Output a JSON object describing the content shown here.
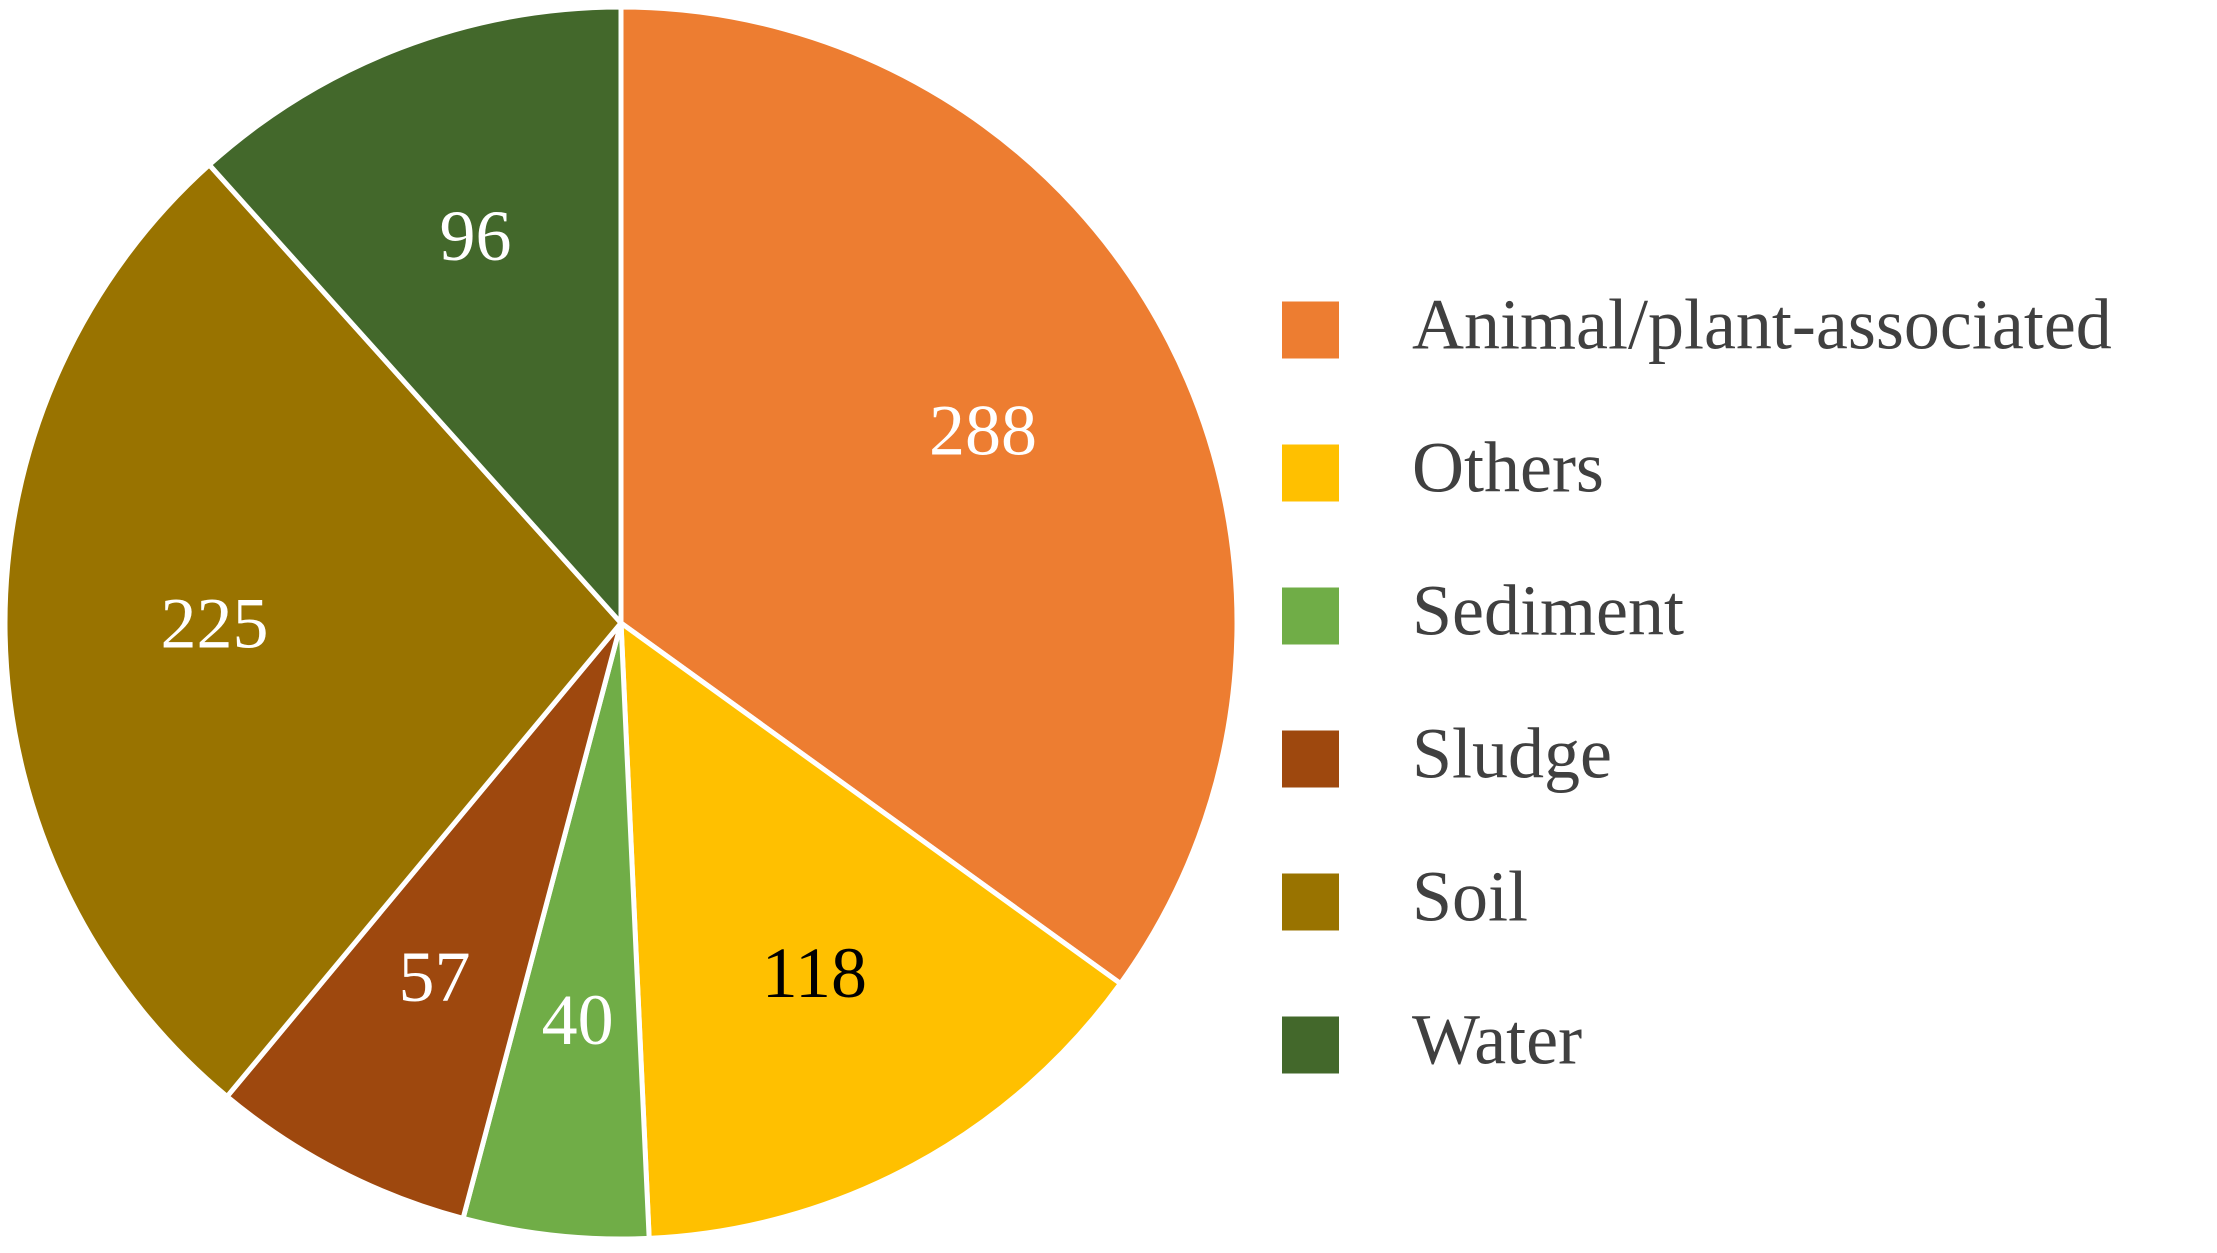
{
  "chart_data": {
    "type": "pie",
    "title": "",
    "categories": [
      "Animal/plant-associated",
      "Others",
      "Sediment",
      "Sludge",
      "Soil",
      "Water"
    ],
    "values": [
      288,
      118,
      40,
      57,
      225,
      96
    ],
    "colors": [
      "#ED7D31",
      "#FFC000",
      "#70AD47",
      "#9E480E",
      "#997300",
      "#43682B"
    ],
    "label_colors": [
      "#FFFFFF",
      "#000000",
      "#FFFFFF",
      "#FFFFFF",
      "#FFFFFF",
      "#FFFFFF"
    ],
    "data_labels": [
      "288",
      "118",
      "40",
      "57",
      "225",
      "96"
    ],
    "start_angle": "12 o'clock",
    "direction": "clockwise",
    "legend_position": "right"
  }
}
